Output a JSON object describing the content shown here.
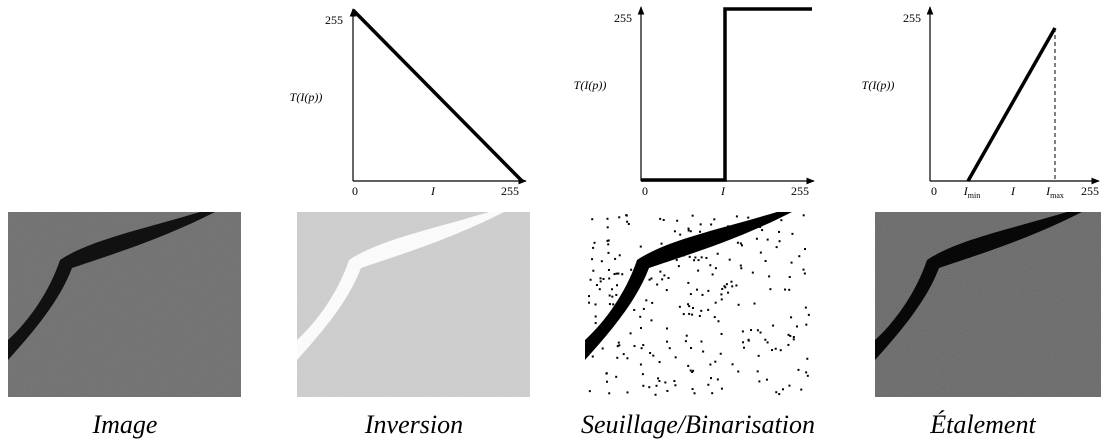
{
  "figure": {
    "panels": [
      {
        "caption": "Image"
      },
      {
        "caption": "Inversion",
        "plot": {
          "y_max": "255",
          "y_label": "T(I(p))",
          "x_labels": [
            "0",
            "I",
            "255"
          ]
        }
      },
      {
        "caption": "Seuillage/Binarisation",
        "plot": {
          "y_max": "255",
          "y_label": "T(I(p))",
          "x_labels": [
            "0",
            "I",
            "255"
          ]
        }
      },
      {
        "caption": "Étalement",
        "plot": {
          "y_max": "255",
          "y_label": "T(I(p))",
          "x_labels": [
            "0",
            {
              "base": "I",
              "sub": "min"
            },
            "I",
            {
              "base": "I",
              "sub": "max"
            },
            "255"
          ]
        }
      }
    ]
  }
}
